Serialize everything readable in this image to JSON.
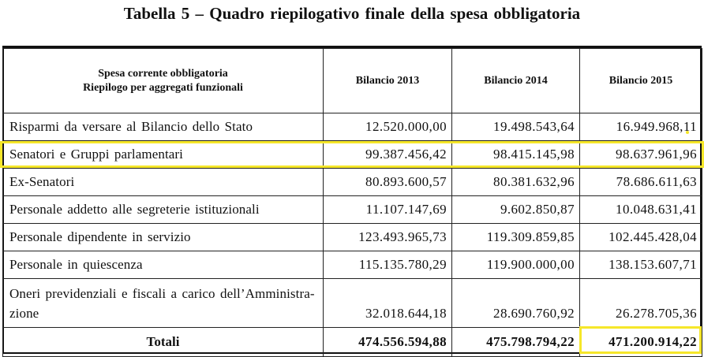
{
  "title": "Tabella 5 – Quadro riepilogativo finale della spesa obbligatoria",
  "header": {
    "label_line1": "Spesa corrente obbligatoria",
    "label_line2": "Riepilogo per aggregati funzionali",
    "col_2013": "Bilancio 2013",
    "col_2014": "Bilancio 2014",
    "col_2015": "Bilancio 2015"
  },
  "rows": [
    {
      "label": "Risparmi da versare al Bilancio dello Stato",
      "b2013": "12.520.000,00",
      "b2014": "19.498.543,64",
      "b2015": "16.949.968,11"
    },
    {
      "label": "Senatori e Gruppi parlamentari",
      "b2013": "99.387.456,42",
      "b2014": "98.415.145,98",
      "b2015": "98.637.961,96"
    },
    {
      "label": "Ex-Senatori",
      "b2013": "80.893.600,57",
      "b2014": "80.381.632,96",
      "b2015": "78.686.611,63"
    },
    {
      "label": "Personale addetto alle segreterie istituzionali",
      "b2013": "11.107.147,69",
      "b2014": "9.602.850,87",
      "b2015": "10.048.631,41"
    },
    {
      "label": "Personale dipendente in servizio",
      "b2013": "123.493.965,73",
      "b2014": "119.309.859,85",
      "b2015": "102.445.428,04"
    },
    {
      "label": "Personale in quiescenza",
      "b2013": "115.135.780,29",
      "b2014": "119.900.000,00",
      "b2015": "138.153.607,71"
    },
    {
      "label_line1": "Oneri previdenziali e fiscali a carico dell’Amministra-",
      "label_line2": "zione",
      "b2013": "32.018.644,18",
      "b2014": "28.690.760,92",
      "b2015": "26.278.705,36"
    }
  ],
  "totals": {
    "label": "Totali",
    "b2013": "474.556.594,88",
    "b2014": "475.798.794,22",
    "b2015": "471.200.914,22"
  },
  "highlight_color": "#f6e72a"
}
